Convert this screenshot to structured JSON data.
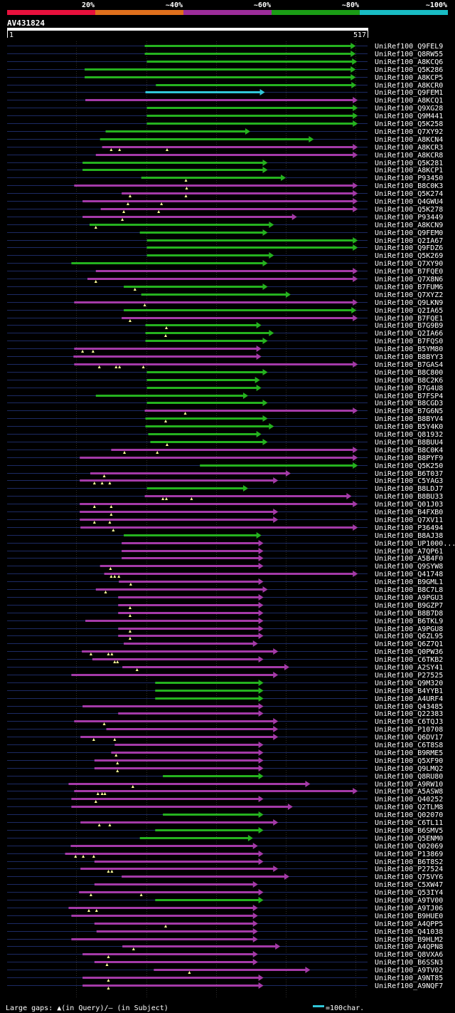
{
  "chart_data": {
    "type": "alignment-map",
    "title": "AV431824",
    "query_start": "1",
    "query_end": "517",
    "x_range": [
      1,
      517
    ],
    "identity_scale": [
      {
        "label": "20%",
        "color": "#e8113d"
      },
      {
        "label": "~40%",
        "color": "#e0701d"
      },
      {
        "label": "~60%",
        "color": "#9c2d9a"
      },
      {
        "label": "~80%",
        "color": "#1b9d16"
      },
      {
        "label": "~100%",
        "color": "#19bcc4"
      }
    ],
    "colors": {
      "green": "#25b21f",
      "magenta": "#a43aa8",
      "cyan": "#31c6d8",
      "gap_marker": "#ffff99",
      "backbone": "#1c2a63",
      "gridline": "#2c2c2c"
    },
    "footer_legend": "Large gaps: ▲(in Query)/– (in Subject)",
    "scale_label": "=100char.",
    "hits": [
      {
        "id": "UniRef100_Q9FEL9",
        "color": "green",
        "start": 198,
        "end": 500,
        "gaps": []
      },
      {
        "id": "UniRef100_Q8RW55",
        "color": "green",
        "start": 198,
        "end": 500,
        "gaps": []
      },
      {
        "id": "UniRef100_A8KCQ6",
        "color": "green",
        "start": 201,
        "end": 502,
        "gaps": []
      },
      {
        "id": "UniRef100_Q5K286",
        "color": "green",
        "start": 112,
        "end": 500,
        "gaps": []
      },
      {
        "id": "UniRef100_A8KCP5",
        "color": "green",
        "start": 112,
        "end": 500,
        "gaps": []
      },
      {
        "id": "UniRef100_A8KCR0",
        "color": "green",
        "start": 214,
        "end": 501,
        "gaps": []
      },
      {
        "id": "UniRef100_Q9FEM1",
        "color": "cyan",
        "start": 199,
        "end": 370,
        "gaps": []
      },
      {
        "id": "UniRef100_A8KCQ1",
        "color": "magenta",
        "start": 113,
        "end": 503,
        "gaps": []
      },
      {
        "id": "UniRef100_Q9XG28",
        "color": "green",
        "start": 201,
        "end": 503,
        "gaps": []
      },
      {
        "id": "UniRef100_Q9M441",
        "color": "green",
        "start": 201,
        "end": 503,
        "gaps": []
      },
      {
        "id": "UniRef100_Q5K258",
        "color": "green",
        "start": 201,
        "end": 503,
        "gaps": []
      },
      {
        "id": "UniRef100_Q7XY92",
        "color": "green",
        "start": 142,
        "end": 349,
        "gaps": []
      },
      {
        "id": "UniRef100_A8KCN4",
        "color": "green",
        "start": 134,
        "end": 440,
        "gaps": []
      },
      {
        "id": "UniRef100_A8KCR3",
        "color": "magenta",
        "start": 137,
        "end": 503,
        "gaps": [
          150,
          162,
          230
        ]
      },
      {
        "id": "UniRef100_A8KCR8",
        "color": "magenta",
        "start": 128,
        "end": 503,
        "gaps": []
      },
      {
        "id": "UniRef100_Q5K281",
        "color": "green",
        "start": 109,
        "end": 374,
        "gaps": []
      },
      {
        "id": "UniRef100_A8KCP1",
        "color": "green",
        "start": 109,
        "end": 374,
        "gaps": []
      },
      {
        "id": "UniRef100_P93450",
        "color": "green",
        "start": 193,
        "end": 400,
        "gaps": [
          257
        ]
      },
      {
        "id": "UniRef100_B8C0K3",
        "color": "magenta",
        "start": 97,
        "end": 503,
        "gaps": [
          258
        ]
      },
      {
        "id": "UniRef100_Q5K274",
        "color": "magenta",
        "start": 165,
        "end": 503,
        "gaps": [
          177,
          257
        ]
      },
      {
        "id": "UniRef100_Q4GWU4",
        "color": "magenta",
        "start": 109,
        "end": 503,
        "gaps": [
          174,
          222
        ]
      },
      {
        "id": "UniRef100_Q5K278",
        "color": "magenta",
        "start": 135,
        "end": 503,
        "gaps": [
          168,
          218
        ]
      },
      {
        "id": "UniRef100_P93449",
        "color": "magenta",
        "start": 109,
        "end": 416,
        "gaps": [
          166
        ]
      },
      {
        "id": "UniRef100_A8KCN9",
        "color": "green",
        "start": 119,
        "end": 383,
        "gaps": [
          128
        ]
      },
      {
        "id": "UniRef100_Q9FEM0",
        "color": "green",
        "start": 191,
        "end": 374,
        "gaps": []
      },
      {
        "id": "UniRef100_Q2IA67",
        "color": "green",
        "start": 201,
        "end": 503,
        "gaps": []
      },
      {
        "id": "UniRef100_Q9FDZ6",
        "color": "green",
        "start": 201,
        "end": 503,
        "gaps": []
      },
      {
        "id": "UniRef100_Q5K269",
        "color": "green",
        "start": 201,
        "end": 383,
        "gaps": []
      },
      {
        "id": "UniRef100_Q7XY90",
        "color": "green",
        "start": 93,
        "end": 374,
        "gaps": []
      },
      {
        "id": "UniRef100_B7FQE0",
        "color": "magenta",
        "start": 128,
        "end": 503,
        "gaps": []
      },
      {
        "id": "UniRef100_Q7X8N6",
        "color": "magenta",
        "start": 116,
        "end": 503,
        "gaps": [
          128
        ]
      },
      {
        "id": "UniRef100_B7FUM6",
        "color": "green",
        "start": 168,
        "end": 374,
        "gaps": [
          184
        ]
      },
      {
        "id": "UniRef100_Q7XYZ2",
        "color": "green",
        "start": 193,
        "end": 407,
        "gaps": []
      },
      {
        "id": "UniRef100_Q9LKN9",
        "color": "magenta",
        "start": 97,
        "end": 503,
        "gaps": [
          198
        ]
      },
      {
        "id": "UniRef100_Q2IA65",
        "color": "green",
        "start": 168,
        "end": 501,
        "gaps": []
      },
      {
        "id": "UniRef100_B7FQE1",
        "color": "magenta",
        "start": 165,
        "end": 503,
        "gaps": [
          177
        ]
      },
      {
        "id": "UniRef100_B7G9B9",
        "color": "green",
        "start": 199,
        "end": 365,
        "gaps": [
          229
        ]
      },
      {
        "id": "UniRef100_Q2IA66",
        "color": "green",
        "start": 199,
        "end": 383,
        "gaps": [
          228
        ]
      },
      {
        "id": "UniRef100_B7FQS0",
        "color": "green",
        "start": 199,
        "end": 374,
        "gaps": []
      },
      {
        "id": "UniRef100_B5YM80",
        "color": "magenta",
        "start": 97,
        "end": 365,
        "gaps": [
          109,
          124
        ]
      },
      {
        "id": "UniRef100_B8BYY3",
        "color": "magenta",
        "start": 96,
        "end": 365,
        "gaps": []
      },
      {
        "id": "UniRef100_B7GAS4",
        "color": "magenta",
        "start": 97,
        "end": 503,
        "gaps": [
          133,
          157,
          162,
          196
        ]
      },
      {
        "id": "UniRef100_B8C800",
        "color": "green",
        "start": 201,
        "end": 374,
        "gaps": []
      },
      {
        "id": "UniRef100_B8C2K6",
        "color": "green",
        "start": 201,
        "end": 363,
        "gaps": []
      },
      {
        "id": "UniRef100_B7G4U8",
        "color": "green",
        "start": 201,
        "end": 365,
        "gaps": []
      },
      {
        "id": "UniRef100_B7FSP4",
        "color": "green",
        "start": 128,
        "end": 346,
        "gaps": []
      },
      {
        "id": "UniRef100_B8CGD3",
        "color": "green",
        "start": 201,
        "end": 374,
        "gaps": []
      },
      {
        "id": "UniRef100_B7G6N5",
        "color": "magenta",
        "start": 198,
        "end": 503,
        "gaps": [
          256
        ]
      },
      {
        "id": "UniRef100_B8BYV4",
        "color": "green",
        "start": 199,
        "end": 374,
        "gaps": [
          228
        ]
      },
      {
        "id": "UniRef100_B5Y4K0",
        "color": "green",
        "start": 199,
        "end": 383,
        "gaps": []
      },
      {
        "id": "UniRef100_Q81932",
        "color": "green",
        "start": 203,
        "end": 365,
        "gaps": []
      },
      {
        "id": "UniRef100_B8BUU4",
        "color": "green",
        "start": 206,
        "end": 374,
        "gaps": [
          230
        ]
      },
      {
        "id": "UniRef100_B8C0K4",
        "color": "magenta",
        "start": 150,
        "end": 503,
        "gaps": [
          169,
          216
        ]
      },
      {
        "id": "UniRef100_B8PYF9",
        "color": "magenta",
        "start": 105,
        "end": 503,
        "gaps": []
      },
      {
        "id": "UniRef100_Q5K250",
        "color": "green",
        "start": 277,
        "end": 503,
        "gaps": []
      },
      {
        "id": "UniRef100_B6T037",
        "color": "magenta",
        "start": 120,
        "end": 407,
        "gaps": [
          140
        ]
      },
      {
        "id": "UniRef100_C5YAG3",
        "color": "magenta",
        "start": 105,
        "end": 389,
        "gaps": [
          126,
          137,
          148
        ]
      },
      {
        "id": "UniRef100_B8LDJ7",
        "color": "green",
        "start": 201,
        "end": 346,
        "gaps": []
      },
      {
        "id": "UniRef100_B8BU33",
        "color": "magenta",
        "start": 198,
        "end": 494,
        "gaps": [
          224,
          229,
          265
        ]
      },
      {
        "id": "UniRef100_Q01J03",
        "color": "magenta",
        "start": 105,
        "end": 503,
        "gaps": [
          126,
          150
        ]
      },
      {
        "id": "UniRef100_B4FXB0",
        "color": "magenta",
        "start": 105,
        "end": 389,
        "gaps": [
          150
        ]
      },
      {
        "id": "UniRef100_Q7XV11",
        "color": "magenta",
        "start": 105,
        "end": 389,
        "gaps": [
          126,
          148
        ]
      },
      {
        "id": "UniRef100_P36494",
        "color": "magenta",
        "start": 106,
        "end": 503,
        "gaps": [
          153
        ]
      },
      {
        "id": "UniRef100_B8AJ38",
        "color": "green",
        "start": 168,
        "end": 365,
        "gaps": []
      },
      {
        "id": "UniRef100_UP1000...",
        "color": "magenta",
        "start": 165,
        "end": 368,
        "gaps": []
      },
      {
        "id": "UniRef100_A7QP61",
        "color": "magenta",
        "start": 165,
        "end": 368,
        "gaps": []
      },
      {
        "id": "UniRef100_A5B4F0",
        "color": "magenta",
        "start": 165,
        "end": 368,
        "gaps": []
      },
      {
        "id": "UniRef100_Q9SYW8",
        "color": "magenta",
        "start": 134,
        "end": 368,
        "gaps": [
          149
        ]
      },
      {
        "id": "UniRef100_Q41748",
        "color": "magenta",
        "start": 140,
        "end": 503,
        "gaps": [
          150,
          155,
          161
        ]
      },
      {
        "id": "UniRef100_B9GML1",
        "color": "magenta",
        "start": 161,
        "end": 368,
        "gaps": [
          178
        ]
      },
      {
        "id": "UniRef100_B8C7L8",
        "color": "magenta",
        "start": 128,
        "end": 374,
        "gaps": [
          142
        ]
      },
      {
        "id": "UniRef100_A9PGU3",
        "color": "magenta",
        "start": 160,
        "end": 368,
        "gaps": []
      },
      {
        "id": "UniRef100_B9GZP7",
        "color": "magenta",
        "start": 160,
        "end": 368,
        "gaps": [
          177
        ]
      },
      {
        "id": "UniRef100_B8B7D8",
        "color": "magenta",
        "start": 160,
        "end": 368,
        "gaps": [
          177
        ]
      },
      {
        "id": "UniRef100_B6TKL9",
        "color": "magenta",
        "start": 113,
        "end": 368,
        "gaps": []
      },
      {
        "id": "UniRef100_A9PGU8",
        "color": "magenta",
        "start": 160,
        "end": 368,
        "gaps": [
          177
        ]
      },
      {
        "id": "UniRef100_Q6ZL95",
        "color": "magenta",
        "start": 160,
        "end": 368,
        "gaps": [
          177
        ]
      },
      {
        "id": "UniRef100_Q6Z7Q1",
        "color": "magenta",
        "start": 168,
        "end": 360,
        "gaps": []
      },
      {
        "id": "UniRef100_Q0PW36",
        "color": "magenta",
        "start": 108,
        "end": 389,
        "gaps": [
          121,
          146,
          151
        ]
      },
      {
        "id": "UniRef100_C6TKB2",
        "color": "magenta",
        "start": 123,
        "end": 368,
        "gaps": [
          155,
          159
        ]
      },
      {
        "id": "UniRef100_A2SY41",
        "color": "magenta",
        "start": 166,
        "end": 405,
        "gaps": [
          187
        ]
      },
      {
        "id": "UniRef100_P27525",
        "color": "magenta",
        "start": 93,
        "end": 389,
        "gaps": []
      },
      {
        "id": "UniRef100_Q9M320",
        "color": "green",
        "start": 213,
        "end": 368,
        "gaps": []
      },
      {
        "id": "UniRef100_B4YYB1",
        "color": "green",
        "start": 213,
        "end": 368,
        "gaps": []
      },
      {
        "id": "UniRef100_A4URF4",
        "color": "green",
        "start": 213,
        "end": 368,
        "gaps": []
      },
      {
        "id": "UniRef100_Q43485",
        "color": "magenta",
        "start": 109,
        "end": 368,
        "gaps": []
      },
      {
        "id": "UniRef100_Q22383",
        "color": "magenta",
        "start": 160,
        "end": 368,
        "gaps": []
      },
      {
        "id": "UniRef100_C6TQJ3",
        "color": "magenta",
        "start": 97,
        "end": 389,
        "gaps": [
          140
        ]
      },
      {
        "id": "UniRef100_P10708",
        "color": "magenta",
        "start": 143,
        "end": 389,
        "gaps": []
      },
      {
        "id": "UniRef100_Q6DV17",
        "color": "magenta",
        "start": 106,
        "end": 389,
        "gaps": [
          125,
          155
        ]
      },
      {
        "id": "UniRef100_C6T8S8",
        "color": "magenta",
        "start": 155,
        "end": 368,
        "gaps": []
      },
      {
        "id": "UniRef100_B9RME5",
        "color": "magenta",
        "start": 150,
        "end": 368,
        "gaps": [
          157
        ]
      },
      {
        "id": "UniRef100_Q5XF90",
        "color": "magenta",
        "start": 126,
        "end": 368,
        "gaps": [
          159
        ]
      },
      {
        "id": "UniRef100_Q9LMQ2",
        "color": "magenta",
        "start": 126,
        "end": 368,
        "gaps": [
          159
        ]
      },
      {
        "id": "UniRef100_Q8RU80",
        "color": "green",
        "start": 224,
        "end": 368,
        "gaps": []
      },
      {
        "id": "UniRef100_A9RW10",
        "color": "magenta",
        "start": 89,
        "end": 435,
        "gaps": [
          181
        ]
      },
      {
        "id": "UniRef100_A5ASW8",
        "color": "magenta",
        "start": 97,
        "end": 503,
        "gaps": [
          131,
          137,
          141
        ]
      },
      {
        "id": "UniRef100_Q40252",
        "color": "magenta",
        "start": 93,
        "end": 368,
        "gaps": [
          128
        ]
      },
      {
        "id": "UniRef100_Q2TLM8",
        "color": "magenta",
        "start": 93,
        "end": 410,
        "gaps": []
      },
      {
        "id": "UniRef100_Q02070",
        "color": "green",
        "start": 224,
        "end": 368,
        "gaps": []
      },
      {
        "id": "UniRef100_C6TL11",
        "color": "magenta",
        "start": 106,
        "end": 389,
        "gaps": [
          133,
          148
        ]
      },
      {
        "id": "UniRef100_B6SMV5",
        "color": "green",
        "start": 213,
        "end": 368,
        "gaps": []
      },
      {
        "id": "UniRef100_Q5ENM0",
        "color": "green",
        "start": 191,
        "end": 353,
        "gaps": []
      },
      {
        "id": "UniRef100_Q02069",
        "color": "magenta",
        "start": 92,
        "end": 360,
        "gaps": []
      },
      {
        "id": "UniRef100_P13869",
        "color": "magenta",
        "start": 84,
        "end": 368,
        "gaps": [
          99,
          110,
          125
        ]
      },
      {
        "id": "UniRef100_B6T8S2",
        "color": "magenta",
        "start": 126,
        "end": 368,
        "gaps": []
      },
      {
        "id": "UniRef100_P27524",
        "color": "magenta",
        "start": 106,
        "end": 389,
        "gaps": [
          146,
          151
        ]
      },
      {
        "id": "UniRef100_Q75VY6",
        "color": "magenta",
        "start": 165,
        "end": 405,
        "gaps": []
      },
      {
        "id": "UniRef100_C5XW47",
        "color": "magenta",
        "start": 126,
        "end": 360,
        "gaps": []
      },
      {
        "id": "UniRef100_Q53IY4",
        "color": "magenta",
        "start": 104,
        "end": 368,
        "gaps": [
          121,
          193
        ]
      },
      {
        "id": "UniRef100_A9TV00",
        "color": "green",
        "start": 213,
        "end": 368,
        "gaps": []
      },
      {
        "id": "UniRef100_A9TJ06",
        "color": "magenta",
        "start": 89,
        "end": 360,
        "gaps": [
          118,
          129
        ]
      },
      {
        "id": "UniRef100_B9HUE0",
        "color": "magenta",
        "start": 93,
        "end": 360,
        "gaps": []
      },
      {
        "id": "UniRef100_A4QPP5",
        "color": "magenta",
        "start": 126,
        "end": 360,
        "gaps": [
          228
        ]
      },
      {
        "id": "UniRef100_Q41038",
        "color": "magenta",
        "start": 129,
        "end": 360,
        "gaps": []
      },
      {
        "id": "UniRef100_B9HLM2",
        "color": "magenta",
        "start": 93,
        "end": 360,
        "gaps": []
      },
      {
        "id": "UniRef100_A4QPN8",
        "color": "magenta",
        "start": 166,
        "end": 392,
        "gaps": [
          182
        ]
      },
      {
        "id": "UniRef100_Q8VXA6",
        "color": "magenta",
        "start": 109,
        "end": 360,
        "gaps": [
          146
        ]
      },
      {
        "id": "UniRef100_B6SSN3",
        "color": "magenta",
        "start": 126,
        "end": 360,
        "gaps": [
          144
        ]
      },
      {
        "id": "UniRef100_A9TV02",
        "color": "magenta",
        "start": 211,
        "end": 435,
        "gaps": [
          262
        ]
      },
      {
        "id": "UniRef100_A9NT85",
        "color": "magenta",
        "start": 109,
        "end": 368,
        "gaps": [
          146
        ]
      },
      {
        "id": "UniRef100_A9NQF7",
        "color": "magenta",
        "start": 109,
        "end": 368,
        "gaps": [
          146
        ]
      }
    ]
  }
}
